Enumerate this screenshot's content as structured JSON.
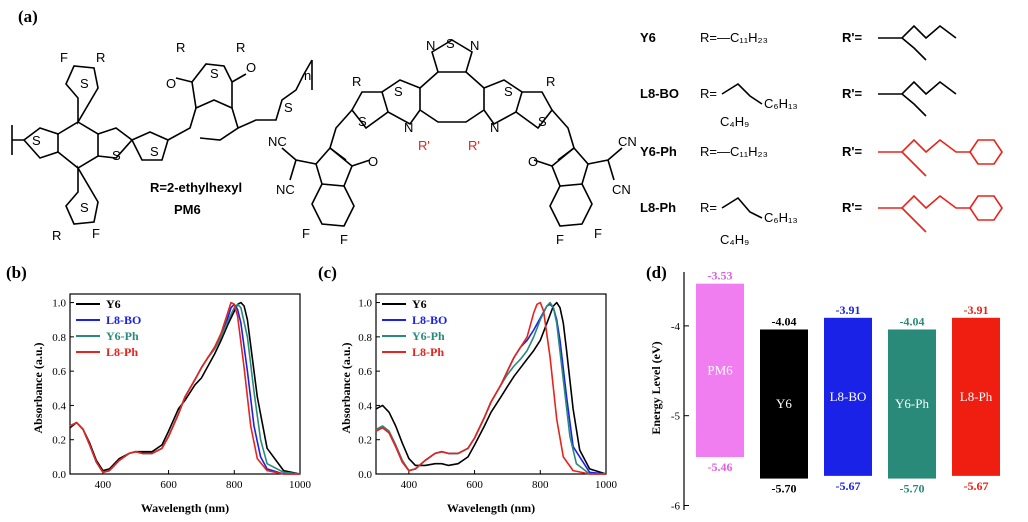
{
  "labels": {
    "panel_a": "(a)",
    "panel_b": "(b)",
    "panel_c": "(c)",
    "panel_d": "(d)"
  },
  "structures": {
    "pm6_r": "R=2-ethylhexyl",
    "pm6_name": "PM6",
    "n": "n",
    "rows": [
      {
        "name": "Y6",
        "r": "R=—C₁₁H₂₃",
        "rprime": "R'=",
        "rprime_color": "#000000"
      },
      {
        "name": "L8-BO",
        "r": "R=",
        "rprime": "R'=",
        "rprime_color": "#000000"
      },
      {
        "name": "Y6-Ph",
        "r": "R=—C₁₁H₂₃",
        "rprime": "R'=",
        "rprime_color": "#e8231b"
      },
      {
        "name": "L8-Ph",
        "r": "R=",
        "rprime": "R'=",
        "rprime_color": "#e8231b"
      }
    ],
    "branch_top": "C₆H₁₃",
    "branch_bottom": "C₄H₉",
    "atoms": {
      "S": "S",
      "F": "F",
      "N": "N",
      "O": "O",
      "R": "R",
      "Rp": "R'",
      "CN": "CN",
      "NC": "NC"
    }
  },
  "chart_data": [
    {
      "type": "line",
      "panel": "(b)",
      "xlabel": "Wavelength (nm)",
      "ylabel": "Absorbance (a.u.)",
      "xlim": [
        300,
        1000
      ],
      "ylim": [
        0,
        1.05
      ],
      "xticks": [
        400,
        600,
        800,
        1000
      ],
      "yticks": [
        0.0,
        0.2,
        0.4,
        0.6,
        0.8,
        1.0
      ],
      "legend_position": "top-left",
      "series": [
        {
          "name": "Y6",
          "color": "#000000",
          "x": [
            300,
            320,
            340,
            360,
            380,
            400,
            420,
            450,
            480,
            500,
            520,
            550,
            580,
            600,
            630,
            650,
            680,
            700,
            720,
            740,
            760,
            780,
            800,
            810,
            820,
            830,
            840,
            850,
            870,
            900,
            950,
            1000
          ],
          "y": [
            0.27,
            0.3,
            0.26,
            0.18,
            0.08,
            0.02,
            0.03,
            0.09,
            0.12,
            0.13,
            0.13,
            0.13,
            0.17,
            0.25,
            0.38,
            0.43,
            0.52,
            0.56,
            0.63,
            0.7,
            0.78,
            0.87,
            0.95,
            0.99,
            1.0,
            0.98,
            0.9,
            0.75,
            0.45,
            0.15,
            0.02,
            0.0
          ]
        },
        {
          "name": "L8-BO",
          "color": "#1a22e8",
          "x": [
            300,
            320,
            340,
            360,
            380,
            400,
            420,
            450,
            480,
            500,
            520,
            550,
            580,
            600,
            630,
            650,
            680,
            700,
            720,
            740,
            760,
            780,
            790,
            800,
            810,
            820,
            840,
            860,
            880,
            900,
            950,
            1000
          ],
          "y": [
            0.28,
            0.3,
            0.26,
            0.17,
            0.07,
            0.01,
            0.02,
            0.08,
            0.12,
            0.13,
            0.12,
            0.12,
            0.15,
            0.22,
            0.35,
            0.45,
            0.55,
            0.62,
            0.68,
            0.73,
            0.8,
            0.91,
            0.97,
            0.99,
            0.96,
            0.88,
            0.6,
            0.28,
            0.1,
            0.03,
            0.0,
            0.0
          ]
        },
        {
          "name": "Y6-Ph",
          "color": "#2a8a7a",
          "x": [
            300,
            320,
            340,
            360,
            380,
            400,
            420,
            450,
            480,
            500,
            520,
            550,
            580,
            600,
            630,
            650,
            680,
            700,
            720,
            740,
            760,
            780,
            800,
            810,
            820,
            840,
            860,
            880,
            900,
            950,
            1000
          ],
          "y": [
            0.28,
            0.3,
            0.26,
            0.17,
            0.07,
            0.01,
            0.02,
            0.08,
            0.12,
            0.13,
            0.12,
            0.12,
            0.15,
            0.22,
            0.35,
            0.45,
            0.55,
            0.62,
            0.68,
            0.73,
            0.8,
            0.89,
            0.97,
            0.99,
            0.97,
            0.8,
            0.48,
            0.2,
            0.06,
            0.01,
            0.0
          ]
        },
        {
          "name": "L8-Ph",
          "color": "#e8231b",
          "x": [
            300,
            320,
            340,
            360,
            380,
            400,
            420,
            450,
            480,
            500,
            520,
            550,
            580,
            600,
            630,
            650,
            680,
            700,
            720,
            740,
            760,
            780,
            790,
            800,
            810,
            830,
            850,
            870,
            900,
            950,
            1000
          ],
          "y": [
            0.28,
            0.3,
            0.26,
            0.17,
            0.07,
            0.01,
            0.02,
            0.08,
            0.12,
            0.13,
            0.12,
            0.12,
            0.15,
            0.22,
            0.35,
            0.45,
            0.55,
            0.62,
            0.68,
            0.74,
            0.82,
            0.94,
            1.0,
            0.99,
            0.92,
            0.62,
            0.28,
            0.09,
            0.02,
            0.0,
            0.0
          ]
        }
      ]
    },
    {
      "type": "line",
      "panel": "(c)",
      "xlabel": "Wavelength (nm)",
      "ylabel": "Absorbance (a.u.)",
      "xlim": [
        300,
        1000
      ],
      "ylim": [
        0,
        1.05
      ],
      "xticks": [
        400,
        600,
        800,
        1000
      ],
      "yticks": [
        0.0,
        0.2,
        0.4,
        0.6,
        0.8,
        1.0
      ],
      "legend_position": "top-left",
      "series": [
        {
          "name": "Y6",
          "color": "#000000",
          "x": [
            300,
            320,
            340,
            360,
            380,
            400,
            420,
            450,
            480,
            500,
            520,
            550,
            580,
            600,
            630,
            650,
            680,
            700,
            720,
            740,
            760,
            780,
            800,
            820,
            840,
            850,
            860,
            870,
            880,
            900,
            920,
            950,
            1000
          ],
          "y": [
            0.38,
            0.4,
            0.36,
            0.28,
            0.18,
            0.09,
            0.05,
            0.05,
            0.06,
            0.06,
            0.05,
            0.06,
            0.1,
            0.17,
            0.28,
            0.36,
            0.45,
            0.51,
            0.57,
            0.62,
            0.67,
            0.72,
            0.78,
            0.88,
            0.98,
            1.0,
            0.97,
            0.88,
            0.72,
            0.38,
            0.14,
            0.03,
            0.0
          ]
        },
        {
          "name": "L8-BO",
          "color": "#1a22e8",
          "x": [
            300,
            320,
            340,
            360,
            380,
            400,
            420,
            450,
            480,
            500,
            520,
            550,
            580,
            600,
            630,
            650,
            680,
            700,
            720,
            740,
            760,
            780,
            800,
            820,
            830,
            840,
            850,
            860,
            880,
            900,
            950,
            1000
          ],
          "y": [
            0.25,
            0.27,
            0.24,
            0.16,
            0.07,
            0.02,
            0.03,
            0.08,
            0.12,
            0.13,
            0.12,
            0.12,
            0.15,
            0.21,
            0.33,
            0.42,
            0.52,
            0.6,
            0.68,
            0.74,
            0.78,
            0.84,
            0.91,
            0.98,
            0.99,
            0.97,
            0.9,
            0.78,
            0.45,
            0.16,
            0.01,
            0.0
          ]
        },
        {
          "name": "Y6-Ph",
          "color": "#2a8a7a",
          "x": [
            300,
            320,
            340,
            360,
            380,
            400,
            420,
            450,
            480,
            500,
            520,
            550,
            580,
            600,
            630,
            650,
            680,
            700,
            720,
            740,
            760,
            780,
            800,
            820,
            830,
            840,
            850,
            870,
            890,
            910,
            950,
            1000
          ],
          "y": [
            0.26,
            0.28,
            0.25,
            0.17,
            0.08,
            0.02,
            0.03,
            0.08,
            0.12,
            0.13,
            0.12,
            0.12,
            0.15,
            0.21,
            0.33,
            0.42,
            0.52,
            0.58,
            0.63,
            0.67,
            0.72,
            0.8,
            0.9,
            0.98,
            1.0,
            0.97,
            0.88,
            0.55,
            0.22,
            0.06,
            0.0,
            0.0
          ]
        },
        {
          "name": "L8-Ph",
          "color": "#e8231b",
          "x": [
            300,
            320,
            340,
            360,
            380,
            400,
            420,
            450,
            480,
            500,
            520,
            550,
            580,
            600,
            630,
            650,
            680,
            700,
            720,
            740,
            760,
            780,
            790,
            800,
            810,
            830,
            850,
            870,
            900,
            950,
            1000
          ],
          "y": [
            0.25,
            0.27,
            0.24,
            0.16,
            0.07,
            0.02,
            0.03,
            0.08,
            0.12,
            0.13,
            0.12,
            0.12,
            0.15,
            0.21,
            0.33,
            0.42,
            0.52,
            0.6,
            0.68,
            0.74,
            0.8,
            0.94,
            0.99,
            1.0,
            0.95,
            0.68,
            0.32,
            0.1,
            0.02,
            0.0,
            0.0
          ]
        }
      ]
    },
    {
      "type": "bar",
      "panel": "(d)",
      "ylabel": "Energy Level (eV)",
      "ylim": [
        -6.05,
        -3.4
      ],
      "yticks": [
        -4,
        -5,
        -6
      ],
      "categories": [
        "PM6",
        "Y6",
        "L8-BO",
        "Y6-Ph",
        "L8-Ph"
      ],
      "lumo": [
        -3.53,
        -4.04,
        -3.91,
        -4.04,
        -3.91
      ],
      "homo": [
        -5.46,
        -5.7,
        -5.67,
        -5.7,
        -5.67
      ],
      "lumo_labels": [
        "-3.53",
        "-4.04",
        "-3.91",
        "-4.04",
        "-3.91"
      ],
      "homo_labels": [
        "-5.46",
        "-5.70",
        "-5.67",
        "-5.70",
        "-5.67"
      ],
      "colors": [
        "#f07ef0",
        "#000000",
        "#1a22e8",
        "#2a8a7a",
        "#f01e10"
      ],
      "label_colors": [
        "#e060e0",
        "#000000",
        "#1a22e8",
        "#2a8a7a",
        "#f01e10"
      ]
    }
  ]
}
